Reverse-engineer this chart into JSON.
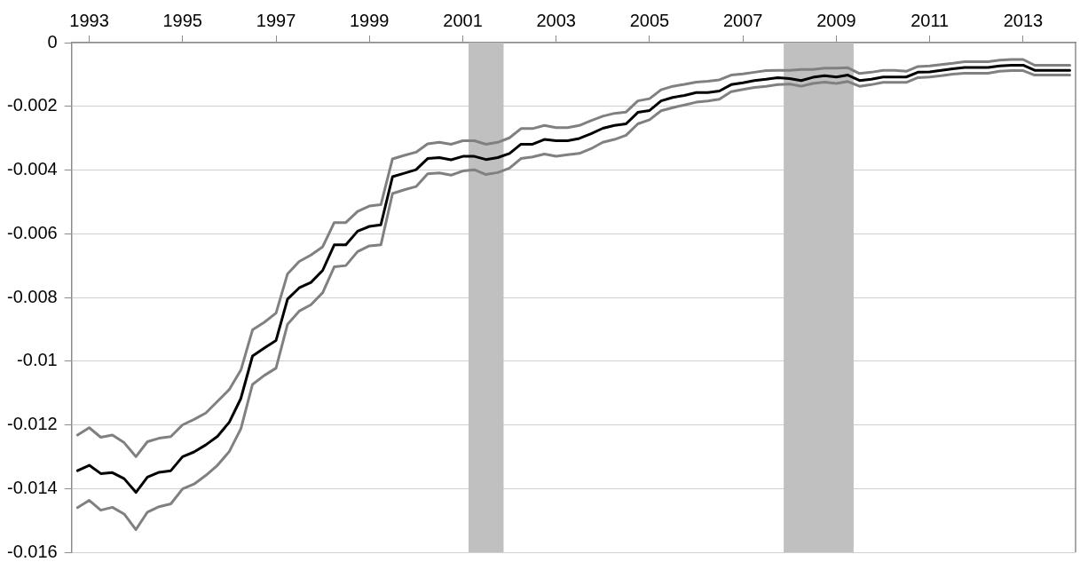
{
  "chart_data": {
    "type": "line",
    "x": [
      "1992-10",
      "1993-01",
      "1993-04",
      "1993-07",
      "1993-10",
      "1994-01",
      "1994-04",
      "1994-07",
      "1994-10",
      "1995-01",
      "1995-04",
      "1995-07",
      "1995-10",
      "1996-01",
      "1996-04",
      "1996-07",
      "1996-10",
      "1997-01",
      "1997-04",
      "1997-07",
      "1997-10",
      "1998-01",
      "1998-04",
      "1998-07",
      "1998-10",
      "1999-01",
      "1999-04",
      "1999-07",
      "1999-10",
      "2000-01",
      "2000-04",
      "2000-07",
      "2000-10",
      "2001-01",
      "2001-04",
      "2001-07",
      "2001-10",
      "2002-01",
      "2002-04",
      "2002-07",
      "2002-10",
      "2003-01",
      "2003-04",
      "2003-07",
      "2003-10",
      "2004-01",
      "2004-04",
      "2004-07",
      "2004-10",
      "2005-01",
      "2005-04",
      "2005-07",
      "2005-10",
      "2006-01",
      "2006-04",
      "2006-07",
      "2006-10",
      "2007-01",
      "2007-04",
      "2007-07",
      "2007-10",
      "2008-01",
      "2008-04",
      "2008-07",
      "2008-10",
      "2009-01",
      "2009-04",
      "2009-07",
      "2009-10",
      "2010-01",
      "2010-04",
      "2010-07",
      "2010-10",
      "2011-01",
      "2011-04",
      "2011-07",
      "2011-10",
      "2012-01",
      "2012-04",
      "2012-07",
      "2012-10",
      "2013-01",
      "2013-04",
      "2013-07",
      "2013-10",
      "2014-01"
    ],
    "series": [
      {
        "color": "#808080",
        "values": [
          -0.01232,
          -0.01209,
          -0.01239,
          -0.01232,
          -0.01256,
          -0.013,
          -0.01253,
          -0.01242,
          -0.01237,
          -0.012,
          -0.01183,
          -0.01163,
          -0.01126,
          -0.01089,
          -0.01028,
          -0.00902,
          -0.00878,
          -0.00849,
          -0.00726,
          -0.00687,
          -0.00667,
          -0.00641,
          -0.00565,
          -0.00565,
          -0.0053,
          -0.00513,
          -0.00509,
          -0.00365,
          -0.00354,
          -0.00344,
          -0.00318,
          -0.00313,
          -0.00319,
          -0.00308,
          -0.00308,
          -0.00319,
          -0.00313,
          -0.00299,
          -0.0027,
          -0.0027,
          -0.0026,
          -0.00267,
          -0.00267,
          -0.0026,
          -0.00245,
          -0.00231,
          -0.00222,
          -0.00218,
          -0.00183,
          -0.00176,
          -0.00148,
          -0.00137,
          -0.00131,
          -0.00124,
          -0.00121,
          -0.00117,
          -0.00102,
          -0.00098,
          -0.00093,
          -0.00088,
          -0.00087,
          -0.00087,
          -0.00084,
          -0.00084,
          -0.0008,
          -0.0008,
          -0.00079,
          -0.00097,
          -0.00093,
          -0.00087,
          -0.00087,
          -0.0009,
          -0.00075,
          -0.00073,
          -0.00069,
          -0.00065,
          -0.0006,
          -0.0006,
          -0.0006,
          -0.00055,
          -0.00053,
          -0.00053,
          -0.00071,
          -0.00071,
          -0.00071,
          -0.00071
        ]
      },
      {
        "color": "#808080",
        "values": [
          -0.0146,
          -0.01437,
          -0.01468,
          -0.01459,
          -0.0148,
          -0.01529,
          -0.01474,
          -0.01457,
          -0.01448,
          -0.01401,
          -0.01386,
          -0.01359,
          -0.01327,
          -0.01284,
          -0.01212,
          -0.01073,
          -0.01045,
          -0.01022,
          -0.00884,
          -0.00843,
          -0.00823,
          -0.00785,
          -0.00704,
          -0.007,
          -0.00656,
          -0.00638,
          -0.00635,
          -0.00474,
          -0.00462,
          -0.00452,
          -0.00412,
          -0.00409,
          -0.00416,
          -0.00403,
          -0.00399,
          -0.00414,
          -0.00408,
          -0.00394,
          -0.00364,
          -0.00359,
          -0.0035,
          -0.00357,
          -0.00352,
          -0.00348,
          -0.00333,
          -0.00313,
          -0.00304,
          -0.00291,
          -0.00255,
          -0.00242,
          -0.00214,
          -0.00204,
          -0.00196,
          -0.00187,
          -0.00183,
          -0.00178,
          -0.00154,
          -0.00147,
          -0.00141,
          -0.00137,
          -0.00132,
          -0.0013,
          -0.00137,
          -0.00128,
          -0.00124,
          -0.00128,
          -0.00122,
          -0.00137,
          -0.00132,
          -0.00125,
          -0.00125,
          -0.00125,
          -0.0011,
          -0.00108,
          -0.00104,
          -0.00099,
          -0.00096,
          -0.00096,
          -0.00096,
          -0.0009,
          -0.00088,
          -0.00088,
          -0.00102,
          -0.00102,
          -0.00102,
          -0.00102
        ]
      },
      {
        "color": "#000000",
        "values": [
          -0.01344,
          -0.01327,
          -0.01353,
          -0.0135,
          -0.01369,
          -0.01412,
          -0.01364,
          -0.01349,
          -0.01344,
          -0.013,
          -0.01285,
          -0.01263,
          -0.01236,
          -0.01192,
          -0.01117,
          -0.00984,
          -0.00959,
          -0.00935,
          -0.00805,
          -0.0077,
          -0.00753,
          -0.00715,
          -0.00635,
          -0.00635,
          -0.00592,
          -0.00577,
          -0.00572,
          -0.00421,
          -0.0041,
          -0.00399,
          -0.00364,
          -0.00361,
          -0.00368,
          -0.00357,
          -0.00357,
          -0.00367,
          -0.00361,
          -0.00348,
          -0.00319,
          -0.00319,
          -0.00304,
          -0.00308,
          -0.00308,
          -0.00301,
          -0.00286,
          -0.00269,
          -0.0026,
          -0.00255,
          -0.00219,
          -0.00213,
          -0.00183,
          -0.00172,
          -0.00166,
          -0.00157,
          -0.00157,
          -0.00152,
          -0.00132,
          -0.00126,
          -0.00119,
          -0.00115,
          -0.0011,
          -0.00113,
          -0.00119,
          -0.00109,
          -0.00104,
          -0.00108,
          -0.00102,
          -0.00119,
          -0.00115,
          -0.00108,
          -0.00108,
          -0.00108,
          -0.00093,
          -0.00092,
          -0.00087,
          -0.00082,
          -0.00078,
          -0.00078,
          -0.00078,
          -0.00073,
          -0.00071,
          -0.00071,
          -0.00087,
          -0.00087,
          -0.00087,
          -0.00087
        ]
      }
    ],
    "xlim": [
      "1992-08-16",
      "2014-02-15"
    ],
    "xticks": [
      {
        "value": "1993-01",
        "label": "1993"
      },
      {
        "value": "1995-01",
        "label": "1995"
      },
      {
        "value": "1997-01",
        "label": "1997"
      },
      {
        "value": "1999-01",
        "label": "1999"
      },
      {
        "value": "2001-01",
        "label": "2001"
      },
      {
        "value": "2003-01",
        "label": "2003"
      },
      {
        "value": "2005-01",
        "label": "2005"
      },
      {
        "value": "2007-01",
        "label": "2007"
      },
      {
        "value": "2009-01",
        "label": "2009"
      },
      {
        "value": "2011-01",
        "label": "2011"
      },
      {
        "value": "2013-01",
        "label": "2013"
      }
    ],
    "ylim": [
      -0.016,
      0
    ],
    "yticks": [
      0,
      -0.002,
      -0.004,
      -0.006,
      -0.008,
      -0.01,
      -0.012,
      -0.014,
      -0.016
    ],
    "bands": [
      {
        "axis": "x",
        "from": "2001-02-15",
        "to": "2001-11-16",
        "color": "#c0c0c0"
      },
      {
        "axis": "x",
        "from": "2007-11-16",
        "to": "2009-05-16",
        "color": "#c0c0c0"
      }
    ],
    "grid": "y",
    "legend": false,
    "marker": "none",
    "line_style": "solid"
  }
}
